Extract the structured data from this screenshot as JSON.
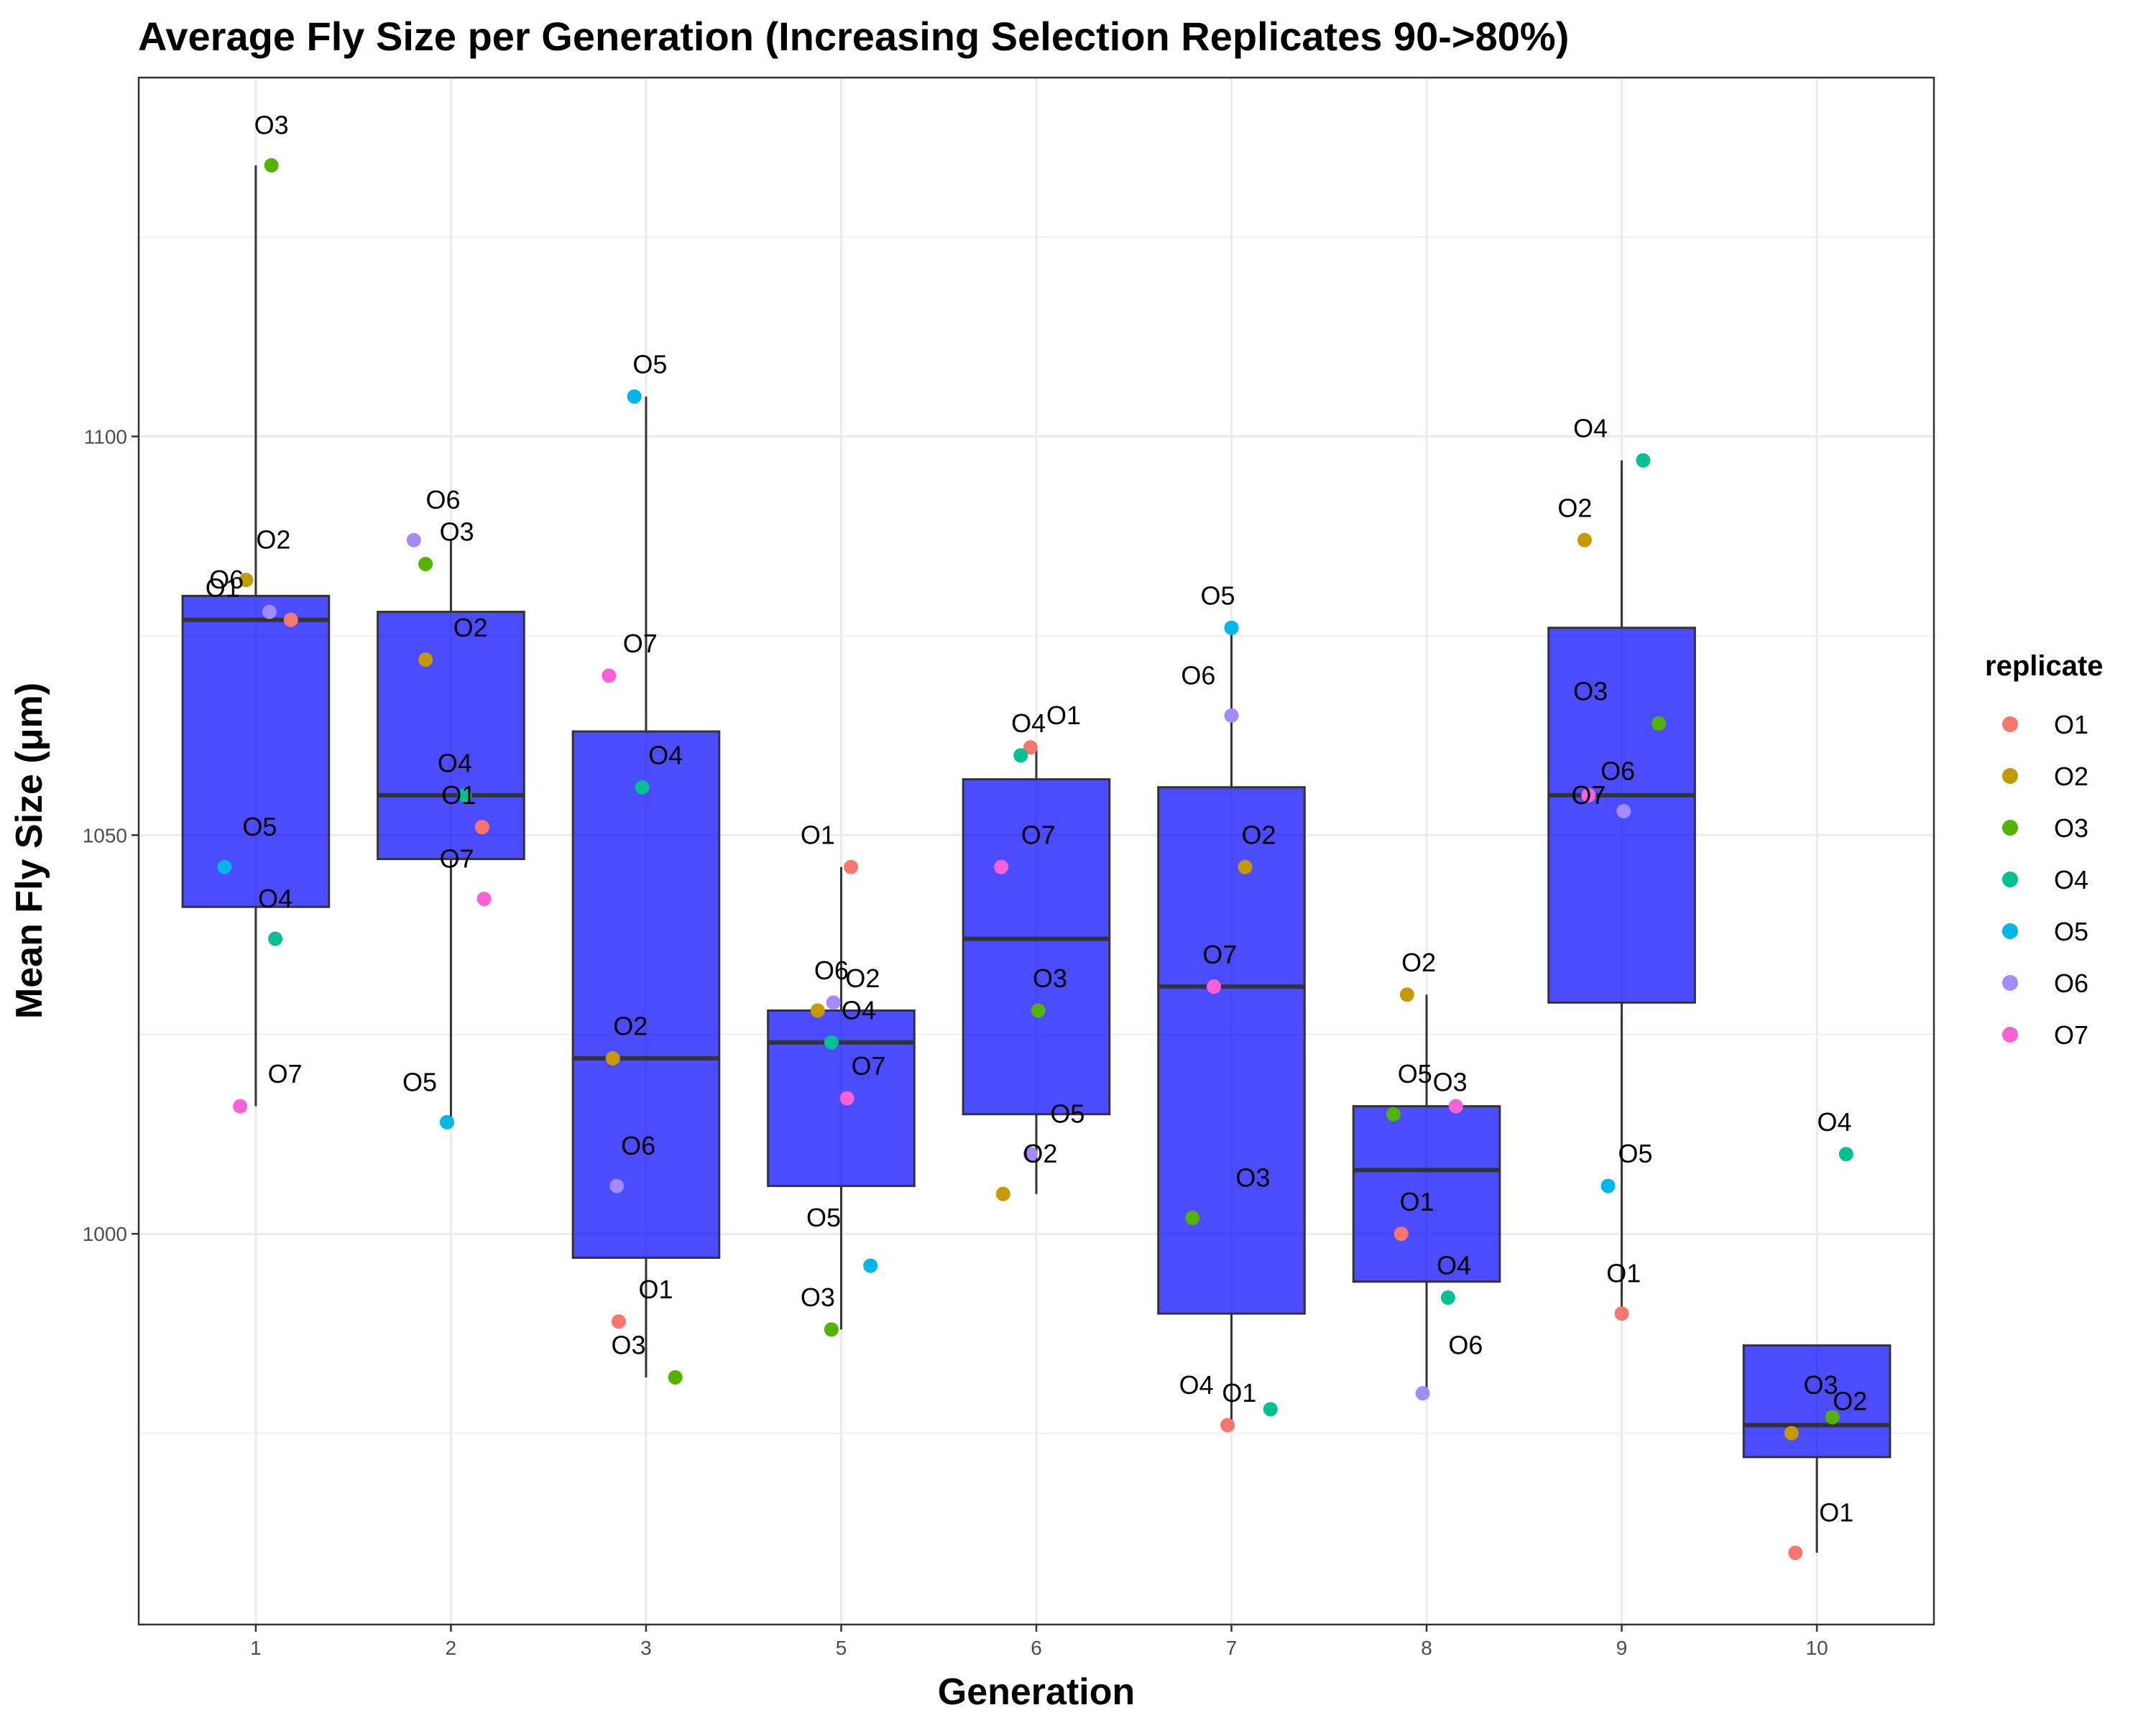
{
  "chart_data": {
    "type": "box",
    "title": "Average Fly Size per Generation (Increasing Selection Replicates 90->80%)",
    "xlabel": "Generation",
    "ylabel": "Mean Fly Size (μm)",
    "categories": [
      "1",
      "2",
      "3",
      "5",
      "6",
      "7",
      "8",
      "9",
      "10"
    ],
    "ylim": [
      951,
      1145
    ],
    "yticks": [
      1000,
      1050,
      1100
    ],
    "grid": true,
    "box_fill": "#0000ff",
    "box_fill_opacity": 0.7,
    "legend": {
      "title": "replicate",
      "position": "right",
      "entries": [
        {
          "name": "O1",
          "color": "#F8766D"
        },
        {
          "name": "O2",
          "color": "#C49A00"
        },
        {
          "name": "O3",
          "color": "#53B400"
        },
        {
          "name": "O4",
          "color": "#00C094"
        },
        {
          "name": "O5",
          "color": "#00B6EB"
        },
        {
          "name": "O6",
          "color": "#A58AFF"
        },
        {
          "name": "O7",
          "color": "#FB61D7"
        }
      ]
    },
    "boxes": [
      {
        "generation": "1",
        "lower_whisker": 1016,
        "q1": 1041,
        "median": 1077,
        "q3": 1080,
        "upper_whisker": 1134
      },
      {
        "generation": "2",
        "lower_whisker": 1014,
        "q1": 1047,
        "median": 1055,
        "q3": 1078,
        "upper_whisker": 1087
      },
      {
        "generation": "3",
        "lower_whisker": 982,
        "q1": 997,
        "median": 1022,
        "q3": 1063,
        "upper_whisker": 1105
      },
      {
        "generation": "5",
        "lower_whisker": 988,
        "q1": 1006,
        "median": 1024,
        "q3": 1028,
        "upper_whisker": 1046
      },
      {
        "generation": "6",
        "lower_whisker": 1005,
        "q1": 1015,
        "median": 1037,
        "q3": 1057,
        "upper_whisker": 1061
      },
      {
        "generation": "7",
        "lower_whisker": 976,
        "q1": 990,
        "median": 1031,
        "q3": 1056,
        "upper_whisker": 1076
      },
      {
        "generation": "8",
        "lower_whisker": 980,
        "q1": 994,
        "median": 1008,
        "q3": 1016,
        "upper_whisker": 1030
      },
      {
        "generation": "9",
        "lower_whisker": 990,
        "q1": 1029,
        "median": 1055,
        "q3": 1076,
        "upper_whisker": 1097
      },
      {
        "generation": "10",
        "lower_whisker": 960,
        "q1": 972,
        "median": 976,
        "q3": 986,
        "upper_whisker": 986
      }
    ],
    "points": [
      {
        "generation": "1",
        "replicate": "O1",
        "value": 1077,
        "dx": 0.18,
        "ldx": -0.17,
        "ldy": 1081
      },
      {
        "generation": "1",
        "replicate": "O2",
        "value": 1082,
        "dx": -0.05,
        "ldx": 0.09,
        "ldy": 1087
      },
      {
        "generation": "1",
        "replicate": "O3",
        "value": 1134,
        "dx": 0.08,
        "ldx": 0.08,
        "ldy": 1139
      },
      {
        "generation": "1",
        "replicate": "O4",
        "value": 1037,
        "dx": 0.1,
        "ldx": 0.1,
        "ldy": 1042
      },
      {
        "generation": "1",
        "replicate": "O5",
        "value": 1046,
        "dx": -0.16,
        "ldx": 0.02,
        "ldy": 1051
      },
      {
        "generation": "1",
        "replicate": "O6",
        "value": 1078,
        "dx": 0.07,
        "ldx": -0.15,
        "ldy": 1082
      },
      {
        "generation": "1",
        "replicate": "O7",
        "value": 1016,
        "dx": -0.08,
        "ldx": 0.15,
        "ldy": 1020
      },
      {
        "generation": "2",
        "replicate": "O1",
        "value": 1051,
        "dx": 0.16,
        "ldx": 0.04,
        "ldy": 1055
      },
      {
        "generation": "2",
        "replicate": "O2",
        "value": 1072,
        "dx": -0.13,
        "ldx": 0.1,
        "ldy": 1076
      },
      {
        "generation": "2",
        "replicate": "O3",
        "value": 1084,
        "dx": -0.13,
        "ldx": 0.03,
        "ldy": 1088
      },
      {
        "generation": "2",
        "replicate": "O4",
        "value": 1055,
        "dx": 0.07,
        "ldx": 0.02,
        "ldy": 1059
      },
      {
        "generation": "2",
        "replicate": "O5",
        "value": 1014,
        "dx": -0.02,
        "ldx": -0.16,
        "ldy": 1019
      },
      {
        "generation": "2",
        "replicate": "O6",
        "value": 1087,
        "dx": -0.19,
        "ldx": -0.04,
        "ldy": 1092
      },
      {
        "generation": "2",
        "replicate": "O7",
        "value": 1042,
        "dx": 0.17,
        "ldx": 0.03,
        "ldy": 1047
      },
      {
        "generation": "3",
        "replicate": "O1",
        "value": 989,
        "dx": -0.14,
        "ldx": 0.05,
        "ldy": 993
      },
      {
        "generation": "3",
        "replicate": "O2",
        "value": 1022,
        "dx": -0.17,
        "ldx": -0.08,
        "ldy": 1026
      },
      {
        "generation": "3",
        "replicate": "O3",
        "value": 982,
        "dx": 0.15,
        "ldx": -0.09,
        "ldy": 986
      },
      {
        "generation": "3",
        "replicate": "O4",
        "value": 1056,
        "dx": -0.02,
        "ldx": 0.1,
        "ldy": 1060
      },
      {
        "generation": "3",
        "replicate": "O5",
        "value": 1105,
        "dx": -0.06,
        "ldx": 0.02,
        "ldy": 1109
      },
      {
        "generation": "3",
        "replicate": "O6",
        "value": 1006,
        "dx": -0.15,
        "ldx": -0.04,
        "ldy": 1011
      },
      {
        "generation": "3",
        "replicate": "O7",
        "value": 1070,
        "dx": -0.19,
        "ldx": -0.03,
        "ldy": 1074
      },
      {
        "generation": "5",
        "replicate": "O1",
        "value": 1046,
        "dx": 0.05,
        "ldx": -0.12,
        "ldy": 1050
      },
      {
        "generation": "5",
        "replicate": "O2",
        "value": 1028,
        "dx": -0.12,
        "ldx": 0.11,
        "ldy": 1032
      },
      {
        "generation": "5",
        "replicate": "O3",
        "value": 988,
        "dx": -0.05,
        "ldx": -0.12,
        "ldy": 992
      },
      {
        "generation": "5",
        "replicate": "O4",
        "value": 1024,
        "dx": -0.05,
        "ldx": 0.09,
        "ldy": 1028
      },
      {
        "generation": "5",
        "replicate": "O5",
        "value": 996,
        "dx": 0.15,
        "ldx": -0.09,
        "ldy": 1002
      },
      {
        "generation": "5",
        "replicate": "O6",
        "value": 1029,
        "dx": -0.04,
        "ldx": -0.05,
        "ldy": 1033
      },
      {
        "generation": "5",
        "replicate": "O7",
        "value": 1017,
        "dx": 0.03,
        "ldx": 0.14,
        "ldy": 1021
      },
      {
        "generation": "6",
        "replicate": "O1",
        "value": 1061,
        "dx": -0.03,
        "ldx": 0.14,
        "ldy": 1065
      },
      {
        "generation": "6",
        "replicate": "O2",
        "value": 1005,
        "dx": -0.17,
        "ldx": 0.02,
        "ldy": 1010
      },
      {
        "generation": "6",
        "replicate": "O3",
        "value": 1028,
        "dx": 0.01,
        "ldx": 0.07,
        "ldy": 1032
      },
      {
        "generation": "6",
        "replicate": "O4",
        "value": 1060,
        "dx": -0.08,
        "ldx": -0.04,
        "ldy": 1064
      },
      {
        "generation": "6",
        "replicate": "O5",
        "value": 1010,
        "dx": -0.03,
        "ldx": 0.16,
        "ldy": 1015
      },
      {
        "generation": "6",
        "replicate": "O6",
        "value": 1010,
        "dx": -0.03,
        "ldx": null,
        "ldy": null
      },
      {
        "generation": "6",
        "replicate": "O7",
        "value": 1046,
        "dx": -0.18,
        "ldx": 0.01,
        "ldy": 1050
      },
      {
        "generation": "7",
        "replicate": "O1",
        "value": 976,
        "dx": -0.02,
        "ldx": 0.04,
        "ldy": 980
      },
      {
        "generation": "7",
        "replicate": "O2",
        "value": 1046,
        "dx": 0.07,
        "ldx": 0.14,
        "ldy": 1050
      },
      {
        "generation": "7",
        "replicate": "O3",
        "value": 1002,
        "dx": -0.2,
        "ldx": 0.11,
        "ldy": 1007
      },
      {
        "generation": "7",
        "replicate": "O4",
        "value": 978,
        "dx": 0.2,
        "ldx": -0.18,
        "ldy": 981
      },
      {
        "generation": "7",
        "replicate": "O5",
        "value": 1076,
        "dx": 0.0,
        "ldx": -0.07,
        "ldy": 1080
      },
      {
        "generation": "7",
        "replicate": "O6",
        "value": 1065,
        "dx": 0.0,
        "ldx": -0.17,
        "ldy": 1070
      },
      {
        "generation": "7",
        "replicate": "O7",
        "value": 1031,
        "dx": -0.09,
        "ldx": -0.06,
        "ldy": 1035
      },
      {
        "generation": "8",
        "replicate": "O1",
        "value": 1000,
        "dx": -0.13,
        "ldx": -0.05,
        "ldy": 1004
      },
      {
        "generation": "8",
        "replicate": "O2",
        "value": 1030,
        "dx": -0.1,
        "ldx": -0.04,
        "ldy": 1034
      },
      {
        "generation": "8",
        "replicate": "O3",
        "value": 1015,
        "dx": -0.17,
        "ldx": 0.12,
        "ldy": 1019
      },
      {
        "generation": "8",
        "replicate": "O4",
        "value": 992,
        "dx": 0.11,
        "ldx": 0.14,
        "ldy": 996
      },
      {
        "generation": "8",
        "replicate": "O5",
        "value": 1016,
        "dx": 0.15,
        "ldx": -0.06,
        "ldy": 1020
      },
      {
        "generation": "8",
        "replicate": "O6",
        "value": 980,
        "dx": -0.02,
        "ldx": 0.2,
        "ldy": 986
      },
      {
        "generation": "8",
        "replicate": "O7",
        "value": 1016,
        "dx": 0.15,
        "ldx": null,
        "ldy": null
      },
      {
        "generation": "9",
        "replicate": "O1",
        "value": 990,
        "dx": 0.0,
        "ldx": 0.01,
        "ldy": 995
      },
      {
        "generation": "9",
        "replicate": "O2",
        "value": 1087,
        "dx": -0.19,
        "ldx": -0.24,
        "ldy": 1091
      },
      {
        "generation": "9",
        "replicate": "O3",
        "value": 1064,
        "dx": 0.19,
        "ldx": -0.16,
        "ldy": 1068
      },
      {
        "generation": "9",
        "replicate": "O4",
        "value": 1097,
        "dx": 0.11,
        "ldx": -0.16,
        "ldy": 1101
      },
      {
        "generation": "9",
        "replicate": "O5",
        "value": 1006,
        "dx": -0.07,
        "ldx": 0.07,
        "ldy": 1010
      },
      {
        "generation": "9",
        "replicate": "O6",
        "value": 1053,
        "dx": 0.01,
        "ldx": -0.02,
        "ldy": 1058
      },
      {
        "generation": "9",
        "replicate": "O7",
        "value": 1055,
        "dx": -0.17,
        "ldx": -0.17,
        "ldy": 1055
      },
      {
        "generation": "10",
        "replicate": "O1",
        "value": 960,
        "dx": -0.11,
        "ldx": 0.1,
        "ldy": 965
      },
      {
        "generation": "10",
        "replicate": "O2",
        "value": 975,
        "dx": -0.13,
        "ldx": 0.17,
        "ldy": 979
      },
      {
        "generation": "10",
        "replicate": "O3",
        "value": 977,
        "dx": 0.08,
        "ldx": 0.02,
        "ldy": 981
      },
      {
        "generation": "10",
        "replicate": "O4",
        "value": 1010,
        "dx": 0.15,
        "ldx": 0.09,
        "ldy": 1014
      }
    ]
  }
}
